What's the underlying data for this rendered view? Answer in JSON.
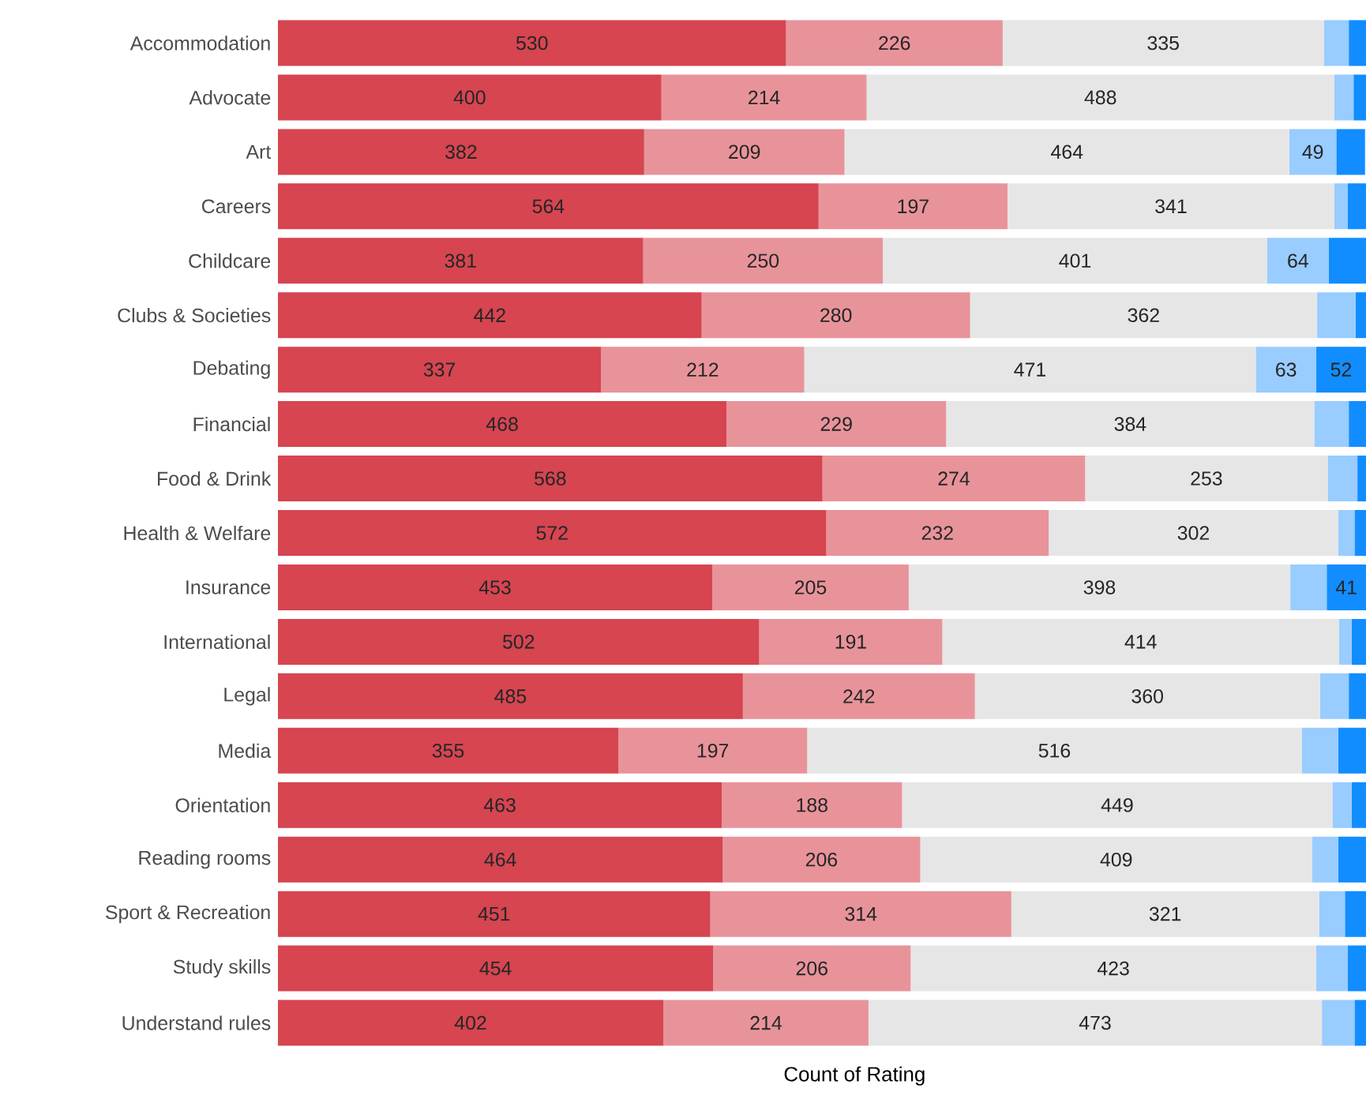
{
  "chart_data": {
    "type": "bar",
    "orientation": "horizontal",
    "stacked": true,
    "xlabel": "Count of Rating",
    "tick_labels": "y",
    "categories": [
      "Accommodation",
      "Advocate",
      "Art",
      "Careers",
      "Childcare",
      "Clubs & Societies",
      "Debating",
      "Financial",
      "Food & Drink",
      "Health & Welfare",
      "Insurance",
      "International",
      "Legal",
      "Media",
      "Orientation",
      "Reading rooms",
      "Sport & Recreation",
      "Study skills",
      "Understand rules"
    ],
    "series": [
      {
        "color": "#d64550",
        "values": [
          530,
          400,
          382,
          564,
          381,
          442,
          337,
          468,
          568,
          572,
          453,
          502,
          485,
          355,
          463,
          464,
          451,
          454,
          402
        ],
        "value_labels": [
          "530",
          "400",
          "382",
          "564",
          "381",
          "442",
          "337",
          "468",
          "568",
          "572",
          "453",
          "502",
          "485",
          "355",
          "463",
          "464",
          "451",
          "454",
          "402"
        ]
      },
      {
        "color": "#e8939a",
        "values": [
          226,
          214,
          209,
          197,
          250,
          280,
          212,
          229,
          274,
          232,
          205,
          191,
          242,
          197,
          188,
          206,
          314,
          206,
          214
        ],
        "value_labels": [
          "226",
          "214",
          "209",
          "197",
          "250",
          "280",
          "212",
          "229",
          "274",
          "232",
          "205",
          "191",
          "242",
          "197",
          "188",
          "206",
          "314",
          "206",
          "214"
        ]
      },
      {
        "color": "#e6e6e6",
        "values": [
          335,
          488,
          464,
          341,
          401,
          362,
          471,
          384,
          253,
          302,
          398,
          414,
          360,
          516,
          449,
          409,
          321,
          423,
          473
        ],
        "value_labels": [
          "335",
          "488",
          "464",
          "341",
          "401",
          "362",
          "471",
          "384",
          "253",
          "302",
          "398",
          "414",
          "360",
          "516",
          "449",
          "409",
          "321",
          "423",
          "473"
        ]
      },
      {
        "color": "#99ccff",
        "values": [
          26,
          20,
          49,
          14,
          64,
          40,
          63,
          36,
          31,
          17,
          38,
          13,
          30,
          38,
          20,
          27,
          27,
          33,
          34
        ],
        "value_labels": [
          null,
          null,
          "49",
          null,
          "64",
          null,
          "63",
          null,
          null,
          null,
          null,
          null,
          null,
          null,
          null,
          null,
          null,
          null,
          null
        ]
      },
      {
        "color": "#118dff",
        "values": [
          18,
          13,
          30,
          19,
          39,
          11,
          52,
          18,
          9,
          12,
          41,
          15,
          18,
          29,
          15,
          29,
          22,
          19,
          12
        ],
        "value_labels": [
          null,
          null,
          null,
          null,
          null,
          null,
          "52",
          null,
          null,
          null,
          "41",
          null,
          null,
          null,
          null,
          null,
          null,
          null,
          null
        ]
      }
    ]
  }
}
